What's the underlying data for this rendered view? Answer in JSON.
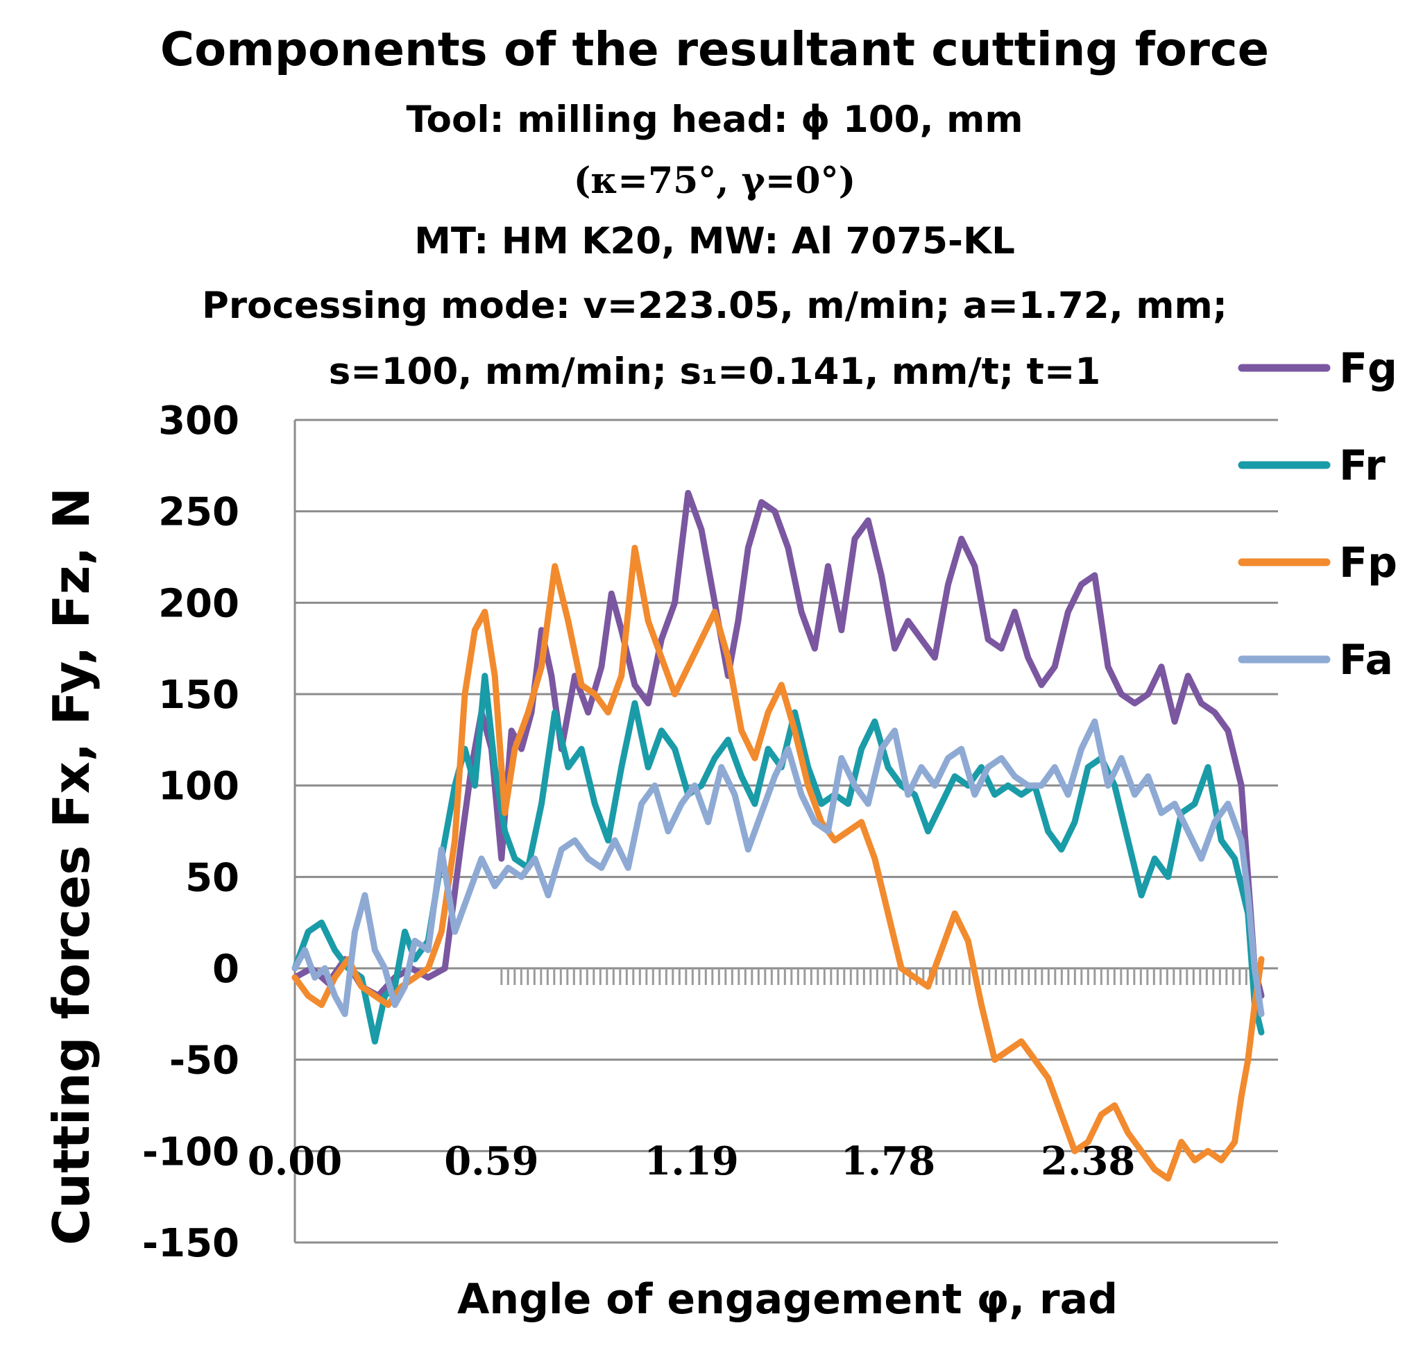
{
  "chart_data": {
    "type": "line",
    "title": "Components of the resultant cutting force",
    "subtitle_lines": [
      "Tool: milling head: ϕ 100, mm",
      "(κ=75°, γ=0°)",
      "MT: HM K20, MW: Al 7075-KL",
      "Processing mode: v=223.05, m/min; a=1.72, mm;",
      "s=100, mm/min; s₁=0.141, mm/t; t=1"
    ],
    "xlabel": "Angle of engagement φ, rad",
    "ylabel": "Cutting forces  Fx, Fy, Fz, N",
    "xlim": [
      0,
      2.95
    ],
    "ylim": [
      -150,
      300
    ],
    "x_ticks": [
      "0.00",
      "0.59",
      "1.19",
      "1.78",
      "2.38"
    ],
    "x_tick_values": [
      0,
      0.59,
      1.19,
      1.78,
      2.38
    ],
    "y_ticks": [
      300,
      250,
      200,
      150,
      100,
      50,
      0,
      -50,
      -100,
      -150
    ],
    "grid": true,
    "legend_position": "right",
    "series": [
      {
        "name": "Fg",
        "color": "#7a57a0",
        "x": [
          0.0,
          0.05,
          0.1,
          0.15,
          0.2,
          0.25,
          0.3,
          0.35,
          0.4,
          0.45,
          0.5,
          0.53,
          0.56,
          0.59,
          0.62,
          0.65,
          0.68,
          0.71,
          0.74,
          0.77,
          0.8,
          0.84,
          0.88,
          0.92,
          0.95,
          0.98,
          1.02,
          1.06,
          1.1,
          1.14,
          1.18,
          1.22,
          1.26,
          1.3,
          1.33,
          1.36,
          1.4,
          1.44,
          1.48,
          1.52,
          1.56,
          1.6,
          1.64,
          1.68,
          1.72,
          1.76,
          1.8,
          1.84,
          1.88,
          1.92,
          1.96,
          2.0,
          2.04,
          2.08,
          2.12,
          2.16,
          2.2,
          2.24,
          2.28,
          2.32,
          2.36,
          2.4,
          2.44,
          2.48,
          2.52,
          2.56,
          2.6,
          2.64,
          2.68,
          2.72,
          2.76,
          2.8,
          2.84,
          2.86,
          2.88,
          2.9
        ],
        "y": [
          -5,
          0,
          -8,
          5,
          -10,
          -15,
          -5,
          0,
          -5,
          0,
          70,
          110,
          140,
          120,
          60,
          130,
          120,
          140,
          185,
          160,
          120,
          160,
          140,
          165,
          205,
          185,
          155,
          145,
          180,
          200,
          260,
          240,
          200,
          160,
          190,
          230,
          255,
          250,
          230,
          195,
          175,
          220,
          185,
          235,
          245,
          215,
          175,
          190,
          180,
          170,
          210,
          235,
          220,
          180,
          175,
          195,
          170,
          155,
          165,
          195,
          210,
          215,
          165,
          150,
          145,
          150,
          165,
          135,
          160,
          145,
          140,
          130,
          100,
          50,
          0,
          -15
        ]
      },
      {
        "name": "Fr",
        "color": "#1a9ba8",
        "x": [
          0.0,
          0.04,
          0.08,
          0.12,
          0.16,
          0.2,
          0.24,
          0.27,
          0.3,
          0.33,
          0.36,
          0.4,
          0.44,
          0.48,
          0.51,
          0.54,
          0.57,
          0.6,
          0.63,
          0.66,
          0.7,
          0.74,
          0.78,
          0.82,
          0.86,
          0.9,
          0.94,
          0.98,
          1.02,
          1.06,
          1.1,
          1.14,
          1.18,
          1.22,
          1.26,
          1.3,
          1.34,
          1.38,
          1.42,
          1.46,
          1.5,
          1.54,
          1.58,
          1.62,
          1.66,
          1.7,
          1.74,
          1.78,
          1.82,
          1.86,
          1.9,
          1.94,
          1.98,
          2.02,
          2.06,
          2.1,
          2.14,
          2.18,
          2.22,
          2.26,
          2.3,
          2.34,
          2.38,
          2.42,
          2.46,
          2.5,
          2.54,
          2.58,
          2.62,
          2.66,
          2.7,
          2.74,
          2.78,
          2.82,
          2.86,
          2.88,
          2.9
        ],
        "y": [
          0,
          20,
          25,
          10,
          0,
          -5,
          -40,
          -15,
          -10,
          20,
          5,
          15,
          60,
          100,
          120,
          100,
          160,
          110,
          75,
          60,
          55,
          90,
          140,
          110,
          120,
          90,
          70,
          110,
          145,
          110,
          130,
          120,
          95,
          100,
          115,
          125,
          105,
          90,
          120,
          110,
          140,
          110,
          90,
          95,
          90,
          120,
          135,
          110,
          100,
          95,
          75,
          90,
          105,
          100,
          110,
          95,
          100,
          95,
          100,
          75,
          65,
          80,
          110,
          115,
          100,
          70,
          40,
          60,
          50,
          85,
          90,
          110,
          70,
          60,
          30,
          -20,
          -35
        ]
      },
      {
        "name": "Fp",
        "color": "#f28a2e",
        "x": [
          0.0,
          0.04,
          0.08,
          0.12,
          0.16,
          0.2,
          0.24,
          0.28,
          0.32,
          0.36,
          0.4,
          0.44,
          0.48,
          0.51,
          0.54,
          0.57,
          0.6,
          0.63,
          0.66,
          0.7,
          0.74,
          0.78,
          0.82,
          0.86,
          0.9,
          0.94,
          0.98,
          1.02,
          1.06,
          1.1,
          1.14,
          1.18,
          1.22,
          1.26,
          1.3,
          1.34,
          1.38,
          1.42,
          1.46,
          1.5,
          1.54,
          1.58,
          1.62,
          1.66,
          1.7,
          1.74,
          1.78,
          1.82,
          1.86,
          1.9,
          1.94,
          1.98,
          2.02,
          2.06,
          2.1,
          2.14,
          2.18,
          2.22,
          2.26,
          2.3,
          2.34,
          2.38,
          2.42,
          2.46,
          2.5,
          2.54,
          2.58,
          2.62,
          2.66,
          2.7,
          2.74,
          2.78,
          2.82,
          2.84,
          2.86,
          2.88,
          2.9
        ],
        "y": [
          -5,
          -15,
          -20,
          -5,
          5,
          -10,
          -15,
          -20,
          -10,
          -5,
          0,
          20,
          70,
          150,
          185,
          195,
          160,
          85,
          120,
          140,
          165,
          220,
          190,
          155,
          150,
          140,
          160,
          230,
          190,
          170,
          150,
          165,
          180,
          195,
          170,
          130,
          115,
          140,
          155,
          130,
          100,
          80,
          70,
          75,
          80,
          60,
          30,
          0,
          -5,
          -10,
          10,
          30,
          15,
          -20,
          -50,
          -45,
          -40,
          -50,
          -60,
          -80,
          -100,
          -95,
          -80,
          -75,
          -90,
          -100,
          -110,
          -115,
          -95,
          -105,
          -100,
          -105,
          -95,
          -70,
          -50,
          -20,
          5
        ]
      },
      {
        "name": "Fa",
        "color": "#8eaad4",
        "x": [
          0.0,
          0.03,
          0.06,
          0.09,
          0.12,
          0.15,
          0.18,
          0.21,
          0.24,
          0.27,
          0.3,
          0.33,
          0.36,
          0.4,
          0.44,
          0.48,
          0.52,
          0.56,
          0.6,
          0.64,
          0.68,
          0.72,
          0.76,
          0.8,
          0.84,
          0.88,
          0.92,
          0.96,
          1.0,
          1.04,
          1.08,
          1.12,
          1.16,
          1.2,
          1.24,
          1.28,
          1.32,
          1.36,
          1.4,
          1.44,
          1.48,
          1.52,
          1.56,
          1.6,
          1.64,
          1.68,
          1.72,
          1.76,
          1.8,
          1.84,
          1.88,
          1.92,
          1.96,
          2.0,
          2.04,
          2.08,
          2.12,
          2.16,
          2.2,
          2.24,
          2.28,
          2.32,
          2.36,
          2.4,
          2.44,
          2.48,
          2.52,
          2.56,
          2.6,
          2.64,
          2.68,
          2.72,
          2.76,
          2.8,
          2.84,
          2.86,
          2.88,
          2.9
        ],
        "y": [
          0,
          10,
          -5,
          0,
          -15,
          -25,
          20,
          40,
          10,
          0,
          -20,
          -10,
          15,
          10,
          65,
          20,
          40,
          60,
          45,
          55,
          50,
          60,
          40,
          65,
          70,
          60,
          55,
          70,
          55,
          90,
          100,
          75,
          90,
          100,
          80,
          110,
          95,
          65,
          85,
          105,
          120,
          95,
          80,
          75,
          115,
          100,
          90,
          120,
          130,
          95,
          110,
          100,
          115,
          120,
          95,
          110,
          115,
          105,
          100,
          100,
          110,
          95,
          120,
          135,
          100,
          115,
          95,
          105,
          85,
          90,
          75,
          60,
          80,
          90,
          70,
          40,
          0,
          -25
        ]
      }
    ]
  }
}
